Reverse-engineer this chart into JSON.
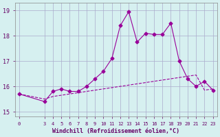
{
  "xlabel": "Windchill (Refroidissement éolien,°C)",
  "bg_color": "#d6f0f0",
  "grid_color": "#aaaacc",
  "line_color": "#990099",
  "x_values": [
    0,
    3,
    4,
    5,
    6,
    7,
    8,
    9,
    10,
    11,
    12,
    13,
    14,
    15,
    16,
    17,
    18,
    19,
    20,
    21,
    22,
    23
  ],
  "y_windchill": [
    15.7,
    15.4,
    15.8,
    15.9,
    15.8,
    15.8,
    16.0,
    16.3,
    16.6,
    17.1,
    18.4,
    18.95,
    17.75,
    18.1,
    18.05,
    18.05,
    18.5,
    17.0,
    16.3,
    16.0,
    16.2,
    15.85
  ],
  "y_temp": [
    15.7,
    15.5,
    15.6,
    15.65,
    15.7,
    15.75,
    15.8,
    15.85,
    15.9,
    15.95,
    16.0,
    16.05,
    16.1,
    16.15,
    16.2,
    16.25,
    16.3,
    16.35,
    16.4,
    16.45,
    15.85,
    15.9
  ],
  "ylim": [
    14.8,
    19.3
  ],
  "yticks": [
    15,
    16,
    17,
    18,
    19
  ],
  "xticks": [
    0,
    3,
    4,
    5,
    6,
    7,
    8,
    9,
    10,
    11,
    12,
    13,
    14,
    15,
    16,
    17,
    18,
    19,
    20,
    21,
    22,
    23
  ]
}
